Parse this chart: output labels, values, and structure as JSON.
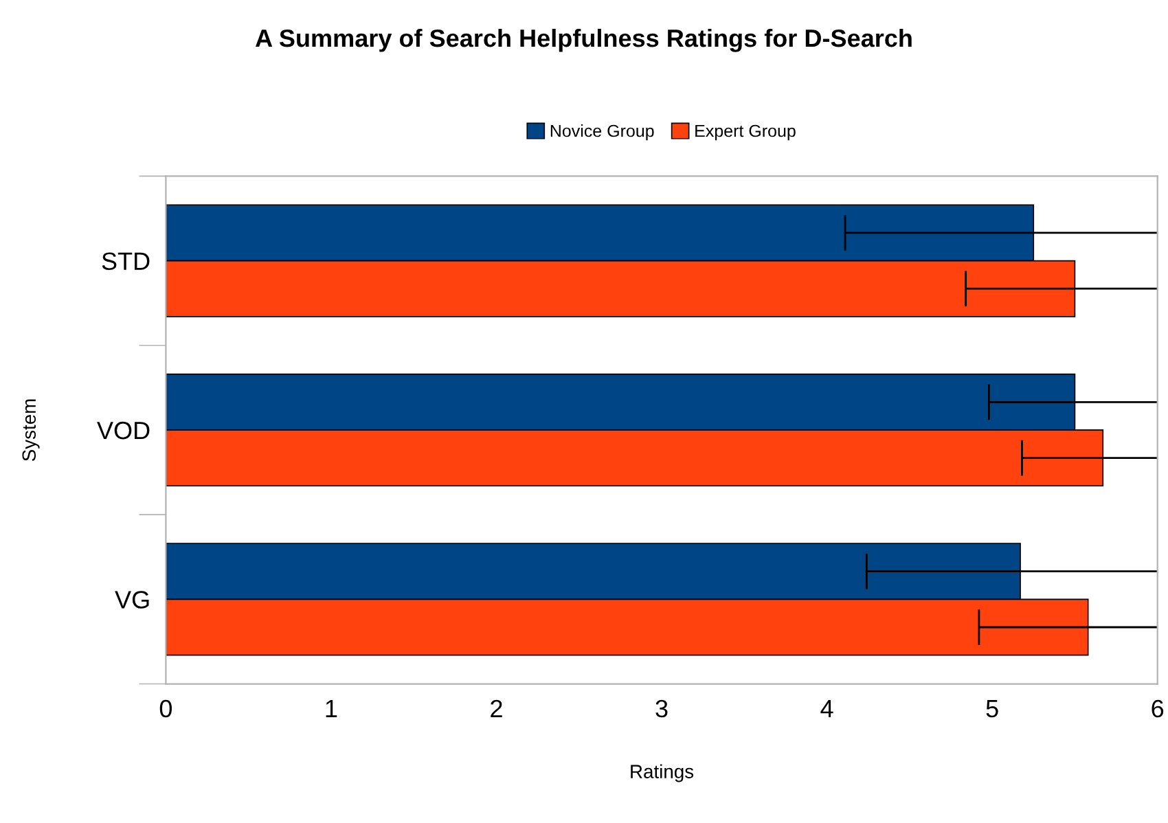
{
  "chart_data": {
    "type": "bar",
    "orientation": "horizontal",
    "title": "A Summary of Search Helpfulness Ratings for D-Search",
    "xlabel": "Ratings",
    "ylabel": "System",
    "categories": [
      "STD",
      "VOD",
      "VG"
    ],
    "series": [
      {
        "name": "Novice Group",
        "color": "#004586",
        "values": [
          5.25,
          5.5,
          5.17
        ],
        "errors": [
          [
            4.11,
            6
          ],
          [
            4.98,
            6
          ],
          [
            4.24,
            6
          ]
        ]
      },
      {
        "name": "Expert Group",
        "color": "#ff420e",
        "values": [
          5.5,
          5.67,
          5.58
        ],
        "errors": [
          [
            4.84,
            6
          ],
          [
            5.18,
            6
          ],
          [
            4.92,
            6
          ]
        ]
      }
    ],
    "xlim": [
      0,
      6
    ],
    "xticks": [
      0,
      1,
      2,
      3,
      4,
      5,
      6
    ],
    "grid": false,
    "legend": "top"
  }
}
